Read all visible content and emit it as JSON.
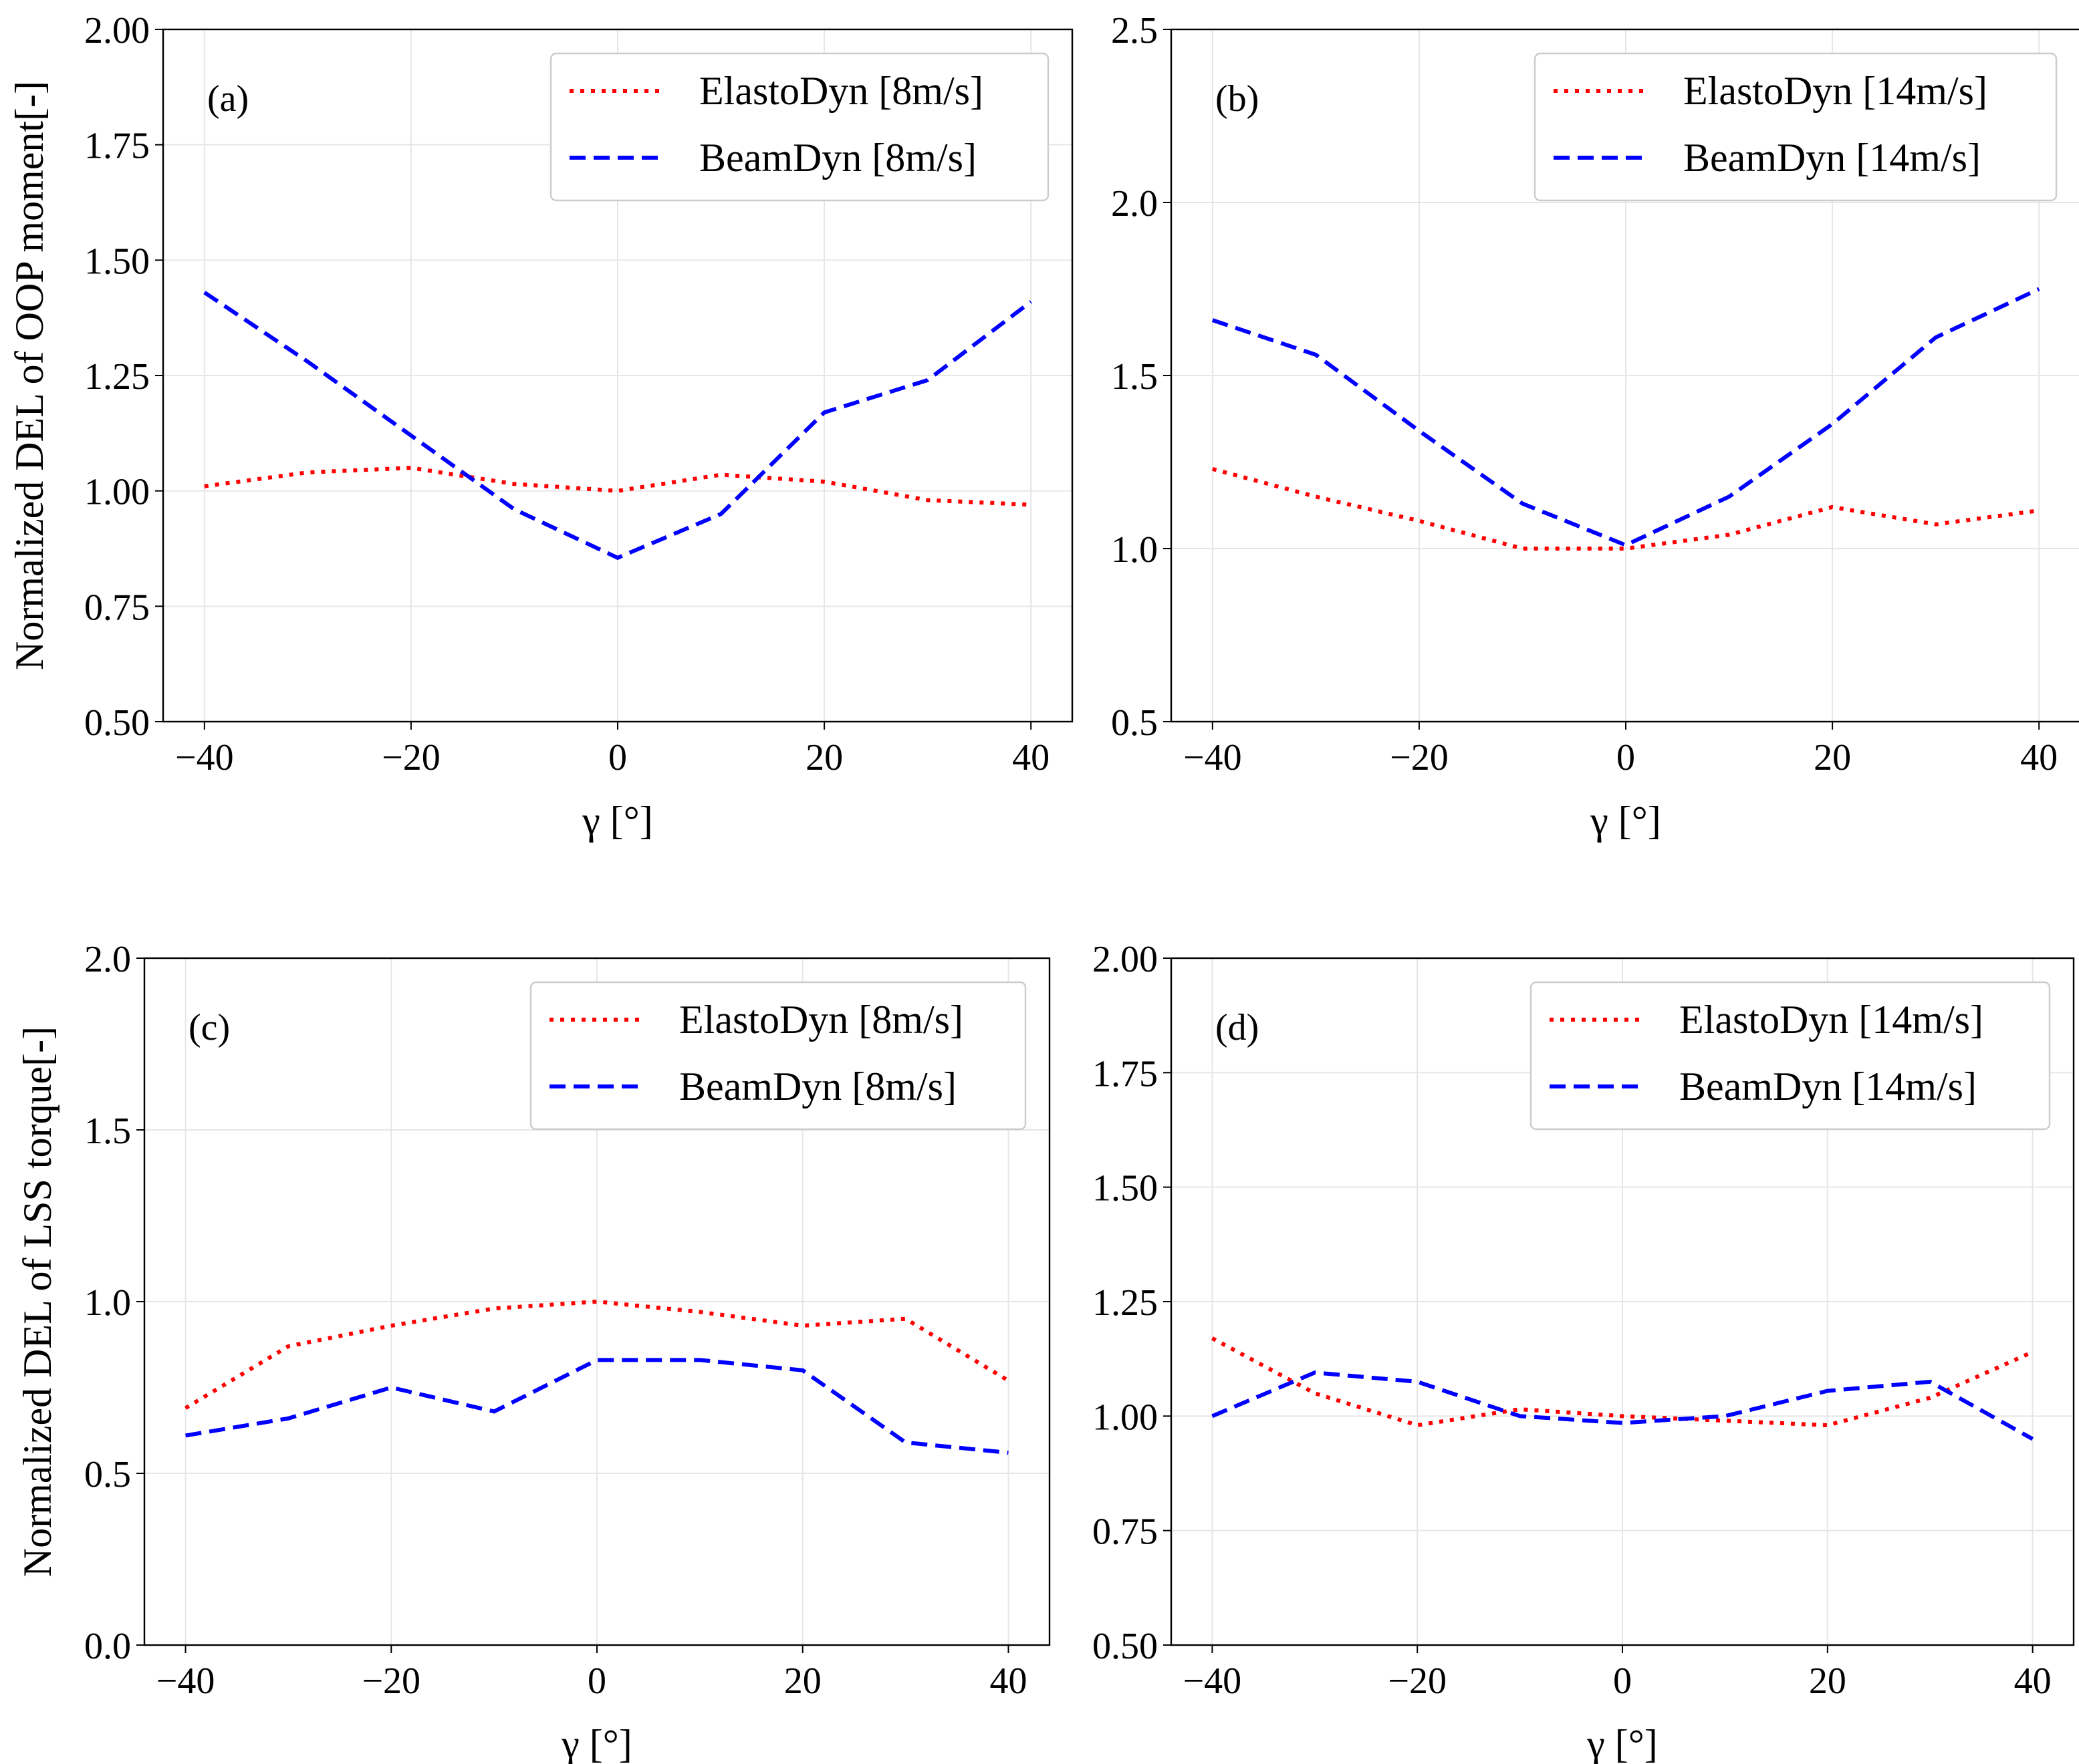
{
  "colors": {
    "elastodyn": "#ff0000",
    "beamdyn": "#0000ff",
    "grid": "#e6e6e6"
  },
  "chart_data": [
    {
      "type": "line",
      "panel_label": "(a)",
      "xlabel": "γ [°]",
      "ylabel": "Normalized DEL of OOP moment[-]",
      "xlim": [
        -44,
        44
      ],
      "ylim": [
        0.5,
        2.0
      ],
      "xticks": [
        -40,
        -20,
        0,
        20,
        40
      ],
      "xtick_labels": [
        "−40",
        "−20",
        "0",
        "20",
        "40"
      ],
      "yticks": [
        0.5,
        0.75,
        1.0,
        1.25,
        1.5,
        1.75,
        2.0
      ],
      "ytick_labels": [
        "0.50",
        "0.75",
        "1.00",
        "1.25",
        "1.50",
        "1.75",
        "2.00"
      ],
      "grid": true,
      "legend_position": "top-right",
      "x": [
        -40,
        -30,
        -20,
        -10,
        0,
        10,
        20,
        30,
        40
      ],
      "series": [
        {
          "name": "ElastoDyn [8m/s]",
          "style": "dotted",
          "values": [
            1.01,
            1.04,
            1.05,
            1.015,
            1.0,
            1.035,
            1.02,
            0.98,
            0.97
          ]
        },
        {
          "name": "BeamDyn [8m/s]",
          "style": "dashed",
          "values": [
            1.43,
            1.28,
            1.12,
            0.96,
            0.855,
            0.95,
            1.17,
            1.24,
            1.41
          ]
        }
      ]
    },
    {
      "type": "line",
      "panel_label": "(b)",
      "xlabel": "γ [°]",
      "ylabel": "",
      "xlim": [
        -44,
        44
      ],
      "ylim": [
        0.5,
        2.5
      ],
      "xticks": [
        -40,
        -20,
        0,
        20,
        40
      ],
      "xtick_labels": [
        "−40",
        "−20",
        "0",
        "20",
        "40"
      ],
      "yticks": [
        0.5,
        1.0,
        1.5,
        2.0,
        2.5
      ],
      "ytick_labels": [
        "0.5",
        "1.0",
        "1.5",
        "2.0",
        "2.5"
      ],
      "grid": true,
      "legend_position": "top-right",
      "x": [
        -40,
        -30,
        -20,
        -10,
        0,
        10,
        20,
        30,
        40
      ],
      "series": [
        {
          "name": "ElastoDyn [14m/s]",
          "style": "dotted",
          "values": [
            1.23,
            1.15,
            1.08,
            1.0,
            1.0,
            1.04,
            1.12,
            1.07,
            1.11
          ]
        },
        {
          "name": "BeamDyn [14m/s]",
          "style": "dashed",
          "values": [
            1.66,
            1.56,
            1.34,
            1.13,
            1.01,
            1.15,
            1.36,
            1.61,
            1.75
          ]
        }
      ]
    },
    {
      "type": "line",
      "panel_label": "(c)",
      "xlabel": "γ [°]",
      "ylabel": "Normalized DEL of LSS torque[-]",
      "xlim": [
        -44,
        44
      ],
      "ylim": [
        0.0,
        2.0
      ],
      "xticks": [
        -40,
        -20,
        0,
        20,
        40
      ],
      "xtick_labels": [
        "−40",
        "−20",
        "0",
        "20",
        "40"
      ],
      "yticks": [
        0.0,
        0.5,
        1.0,
        1.5,
        2.0
      ],
      "ytick_labels": [
        "0.0",
        "0.5",
        "1.0",
        "1.5",
        "2.0"
      ],
      "grid": true,
      "legend_position": "top-right",
      "x": [
        -40,
        -30,
        -20,
        -10,
        0,
        10,
        20,
        30,
        40
      ],
      "series": [
        {
          "name": "ElastoDyn [8m/s]",
          "style": "dotted",
          "values": [
            0.69,
            0.87,
            0.93,
            0.98,
            1.0,
            0.97,
            0.93,
            0.95,
            0.77
          ]
        },
        {
          "name": "BeamDyn [8m/s]",
          "style": "dashed",
          "values": [
            0.61,
            0.66,
            0.75,
            0.68,
            0.83,
            0.83,
            0.8,
            0.59,
            0.56
          ]
        }
      ]
    },
    {
      "type": "line",
      "panel_label": "(d)",
      "xlabel": "γ [°]",
      "ylabel": "",
      "xlim": [
        -44,
        44
      ],
      "ylim": [
        0.5,
        2.0
      ],
      "xticks": [
        -40,
        -20,
        0,
        20,
        40
      ],
      "xtick_labels": [
        "−40",
        "−20",
        "0",
        "20",
        "40"
      ],
      "yticks": [
        0.5,
        0.75,
        1.0,
        1.25,
        1.5,
        1.75,
        2.0
      ],
      "ytick_labels": [
        "0.50",
        "0.75",
        "1.00",
        "1.25",
        "1.50",
        "1.75",
        "2.00"
      ],
      "grid": true,
      "legend_position": "top-right",
      "x": [
        -40,
        -30,
        -20,
        -10,
        0,
        10,
        20,
        30,
        40
      ],
      "series": [
        {
          "name": "ElastoDyn [14m/s]",
          "style": "dotted",
          "values": [
            1.17,
            1.05,
            0.98,
            1.015,
            1.0,
            0.99,
            0.98,
            1.04,
            1.14
          ]
        },
        {
          "name": "BeamDyn [14m/s]",
          "style": "dashed",
          "values": [
            1.0,
            1.095,
            1.075,
            1.0,
            0.985,
            1.0,
            1.055,
            1.075,
            0.95
          ]
        }
      ]
    }
  ]
}
